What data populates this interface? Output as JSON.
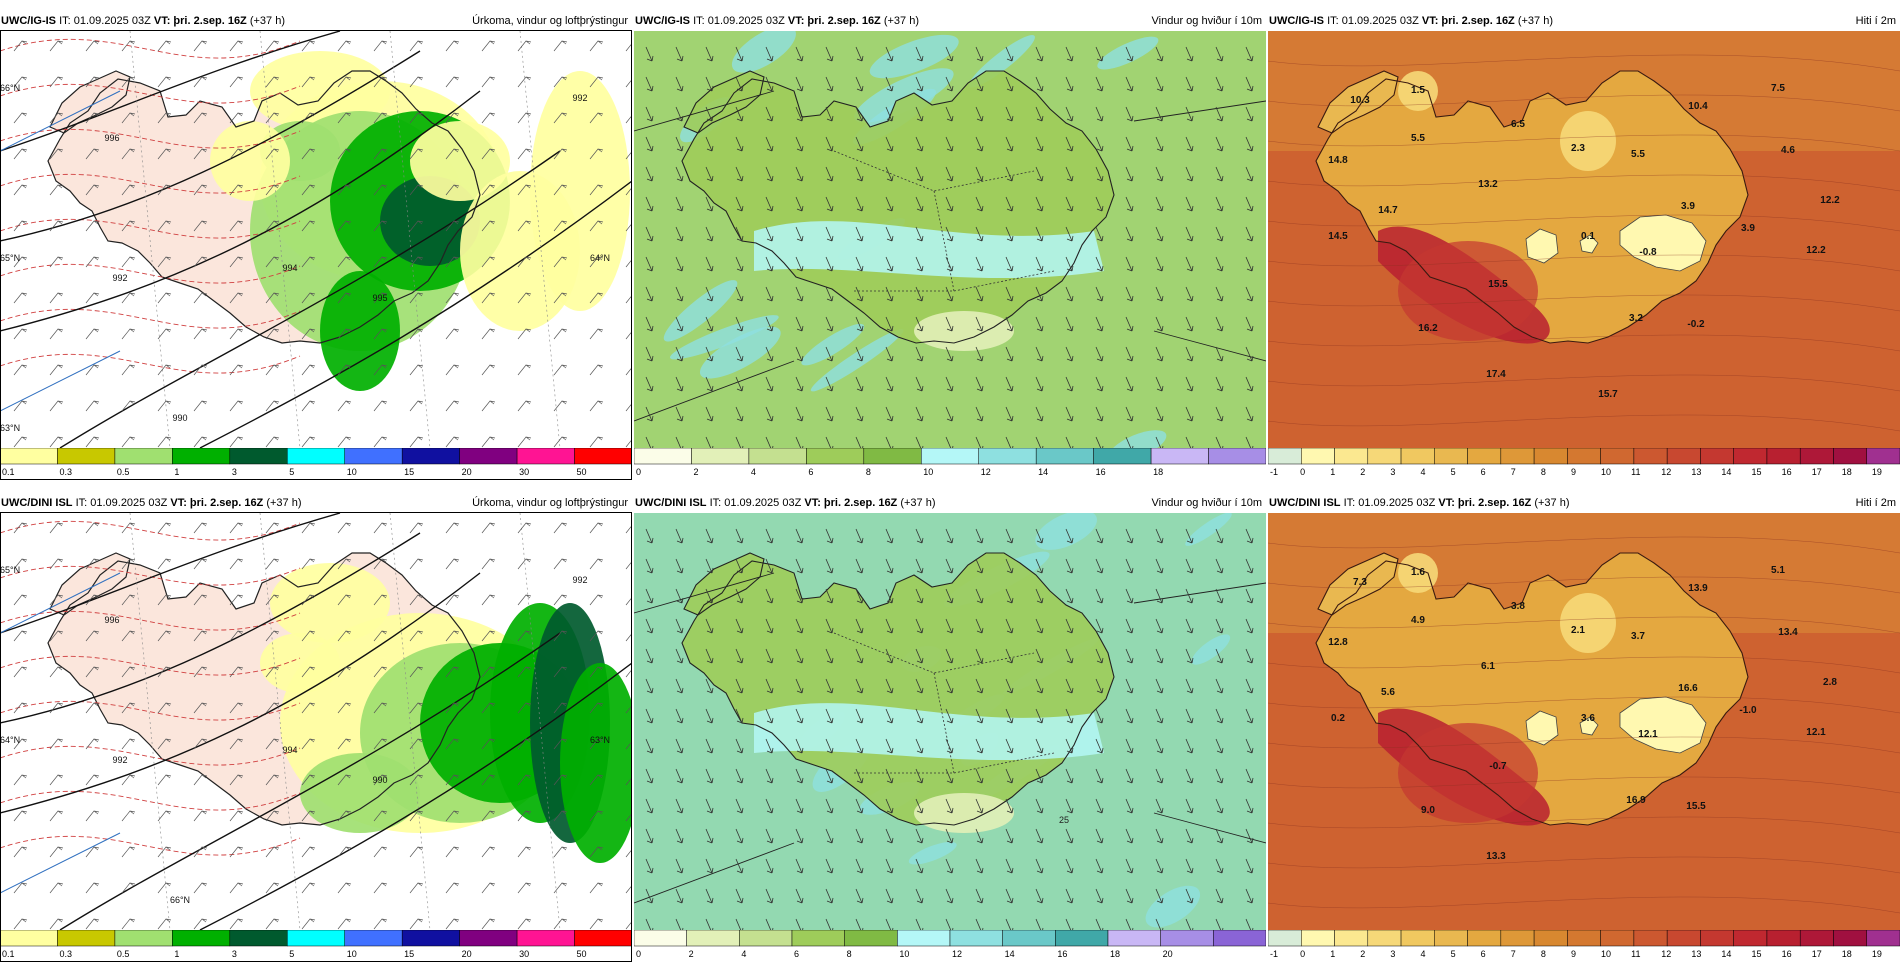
{
  "rows": [
    {
      "model": "UWC/IG-IS",
      "panels": [
        {
          "type": "precip",
          "it_prefix": "IT: 01.09.2025 03Z",
          "vt_label": "VT: þri. 2.sep. 16Z",
          "offset": "(+37 h)",
          "title": "Úrkoma, vindur og loftþrýstingur",
          "map_labels": [
            "996",
            "992",
            "994",
            "992",
            "995",
            "990",
            "66°N",
            "65°N",
            "64°N",
            "63°N"
          ],
          "legend": {
            "colors": [
              "#ffffa0",
              "#c8c800",
              "#a0e070",
              "#00b000",
              "#005a2e",
              "#00ffff",
              "#4070ff",
              "#1010a0",
              "#800080",
              "#ff1493",
              "#ff0000"
            ],
            "ticks": [
              "0.1",
              "0.3",
              "0.5",
              "1",
              "3",
              "5",
              "10",
              "15",
              "20",
              "30",
              "50"
            ]
          }
        },
        {
          "type": "wind",
          "it_prefix": "IT: 01.09.2025 03Z",
          "vt_label": "VT: þri. 2.sep. 16Z",
          "offset": "(+37 h)",
          "title": "Vindur og hviður í 10m",
          "map_labels": [],
          "legend": {
            "colors": [
              "#fbfde8",
              "#e2f0b8",
              "#c4e090",
              "#9ecc5a",
              "#80ba44",
              "#b4f7f7",
              "#8ee0e0",
              "#6ac8c8",
              "#40a8a8",
              "#c9b7f5",
              "#a78ee6"
            ],
            "ticks": [
              "0",
              "2",
              "4",
              "6",
              "8",
              "10",
              "12",
              "14",
              "16",
              "18"
            ]
          }
        },
        {
          "type": "temp",
          "it_prefix": "IT: 01.09.2025 03Z",
          "vt_label": "VT: þri. 2.sep. 16Z",
          "offset": "(+37 h)",
          "title": "Hiti í 2m",
          "map_labels": [
            "1.5",
            "10.3",
            "5.5",
            "6.5",
            "2.3",
            "5.5",
            "10.4",
            "7.5",
            "4.6",
            "14.8",
            "13.2",
            "14.7",
            "3.9",
            "12.2",
            "14.5",
            "0.1",
            "3.9",
            "-0.8",
            "12.2",
            "15.5",
            "16.2",
            "3.2",
            "-0.2",
            "17.4",
            "15.7"
          ],
          "legend": {
            "colors": [
              "#d8ecd8",
              "#fff8b0",
              "#fbe890",
              "#f6d878",
              "#f0c860",
              "#e9b850",
              "#e4a840",
              "#de9838",
              "#d88830",
              "#d47830",
              "#d06830",
              "#cc5830",
              "#c84830",
              "#c43830",
              "#c02830",
              "#b82030",
              "#ae1838",
              "#a01040",
              "#a03090"
            ],
            "ticks": [
              "-1",
              "0",
              "1",
              "2",
              "3",
              "4",
              "5",
              "6",
              "7",
              "8",
              "9",
              "10",
              "11",
              "12",
              "13",
              "14",
              "15",
              "16",
              "17",
              "18",
              "19"
            ]
          }
        }
      ]
    },
    {
      "model": "UWC/DINI ISL",
      "panels": [
        {
          "type": "precip",
          "it_prefix": "IT: 01.09.2025 03Z",
          "vt_label": "VT: þri. 2.sep. 16Z",
          "offset": "(+37 h)",
          "title": "Úrkoma, vindur og loftþrýstingur",
          "map_labels": [
            "996",
            "992",
            "994",
            "992",
            "990",
            "66°N",
            "65°N",
            "64°N",
            "63°N"
          ],
          "legend": {
            "colors": [
              "#ffffa0",
              "#c8c800",
              "#a0e070",
              "#00b000",
              "#005a2e",
              "#00ffff",
              "#4070ff",
              "#1010a0",
              "#800080",
              "#ff1493",
              "#ff0000"
            ],
            "ticks": [
              "0.1",
              "0.3",
              "0.5",
              "1",
              "3",
              "5",
              "10",
              "15",
              "20",
              "30",
              "50"
            ]
          }
        },
        {
          "type": "wind",
          "it_prefix": "IT: 01.09.2025 03Z",
          "vt_label": "VT: þri. 2.sep. 16Z",
          "offset": "(+37 h)",
          "title": "Vindur og hviður í 10m",
          "map_labels": [
            "25"
          ],
          "legend": {
            "colors": [
              "#fbfde8",
              "#e2f0b8",
              "#c4e090",
              "#9ecc5a",
              "#80ba44",
              "#b4f7f7",
              "#8ee0e0",
              "#6ac8c8",
              "#40a8a8",
              "#c9b7f5",
              "#a78ee6",
              "#8a64d6"
            ],
            "ticks": [
              "0",
              "2",
              "4",
              "6",
              "8",
              "10",
              "12",
              "14",
              "16",
              "18",
              "20"
            ]
          }
        },
        {
          "type": "temp",
          "it_prefix": "IT: 01.09.2025 03Z",
          "vt_label": "VT: þri. 2.sep. 16Z",
          "offset": "(+37 h)",
          "title": "Hiti í 2m",
          "map_labels": [
            "1.6",
            "7.3",
            "4.9",
            "3.8",
            "2.1",
            "3.7",
            "13.9",
            "5.1",
            "13.4",
            "12.8",
            "6.1",
            "5.6",
            "16.6",
            "2.8",
            "0.2",
            "3.6",
            "-1.0",
            "12.1",
            "12.1",
            "-0.7",
            "9.0",
            "16.9",
            "15.5",
            "13.3"
          ],
          "legend": {
            "colors": [
              "#d8ecd8",
              "#fff8b0",
              "#fbe890",
              "#f6d878",
              "#f0c860",
              "#e9b850",
              "#e4a840",
              "#de9838",
              "#d88830",
              "#d47830",
              "#d06830",
              "#cc5830",
              "#c84830",
              "#c43830",
              "#c02830",
              "#b82030",
              "#ae1838",
              "#a01040",
              "#a03090"
            ],
            "ticks": [
              "-1",
              "0",
              "1",
              "2",
              "3",
              "4",
              "5",
              "6",
              "7",
              "8",
              "9",
              "10",
              "11",
              "12",
              "13",
              "14",
              "15",
              "16",
              "17",
              "18",
              "19"
            ]
          }
        }
      ]
    }
  ]
}
